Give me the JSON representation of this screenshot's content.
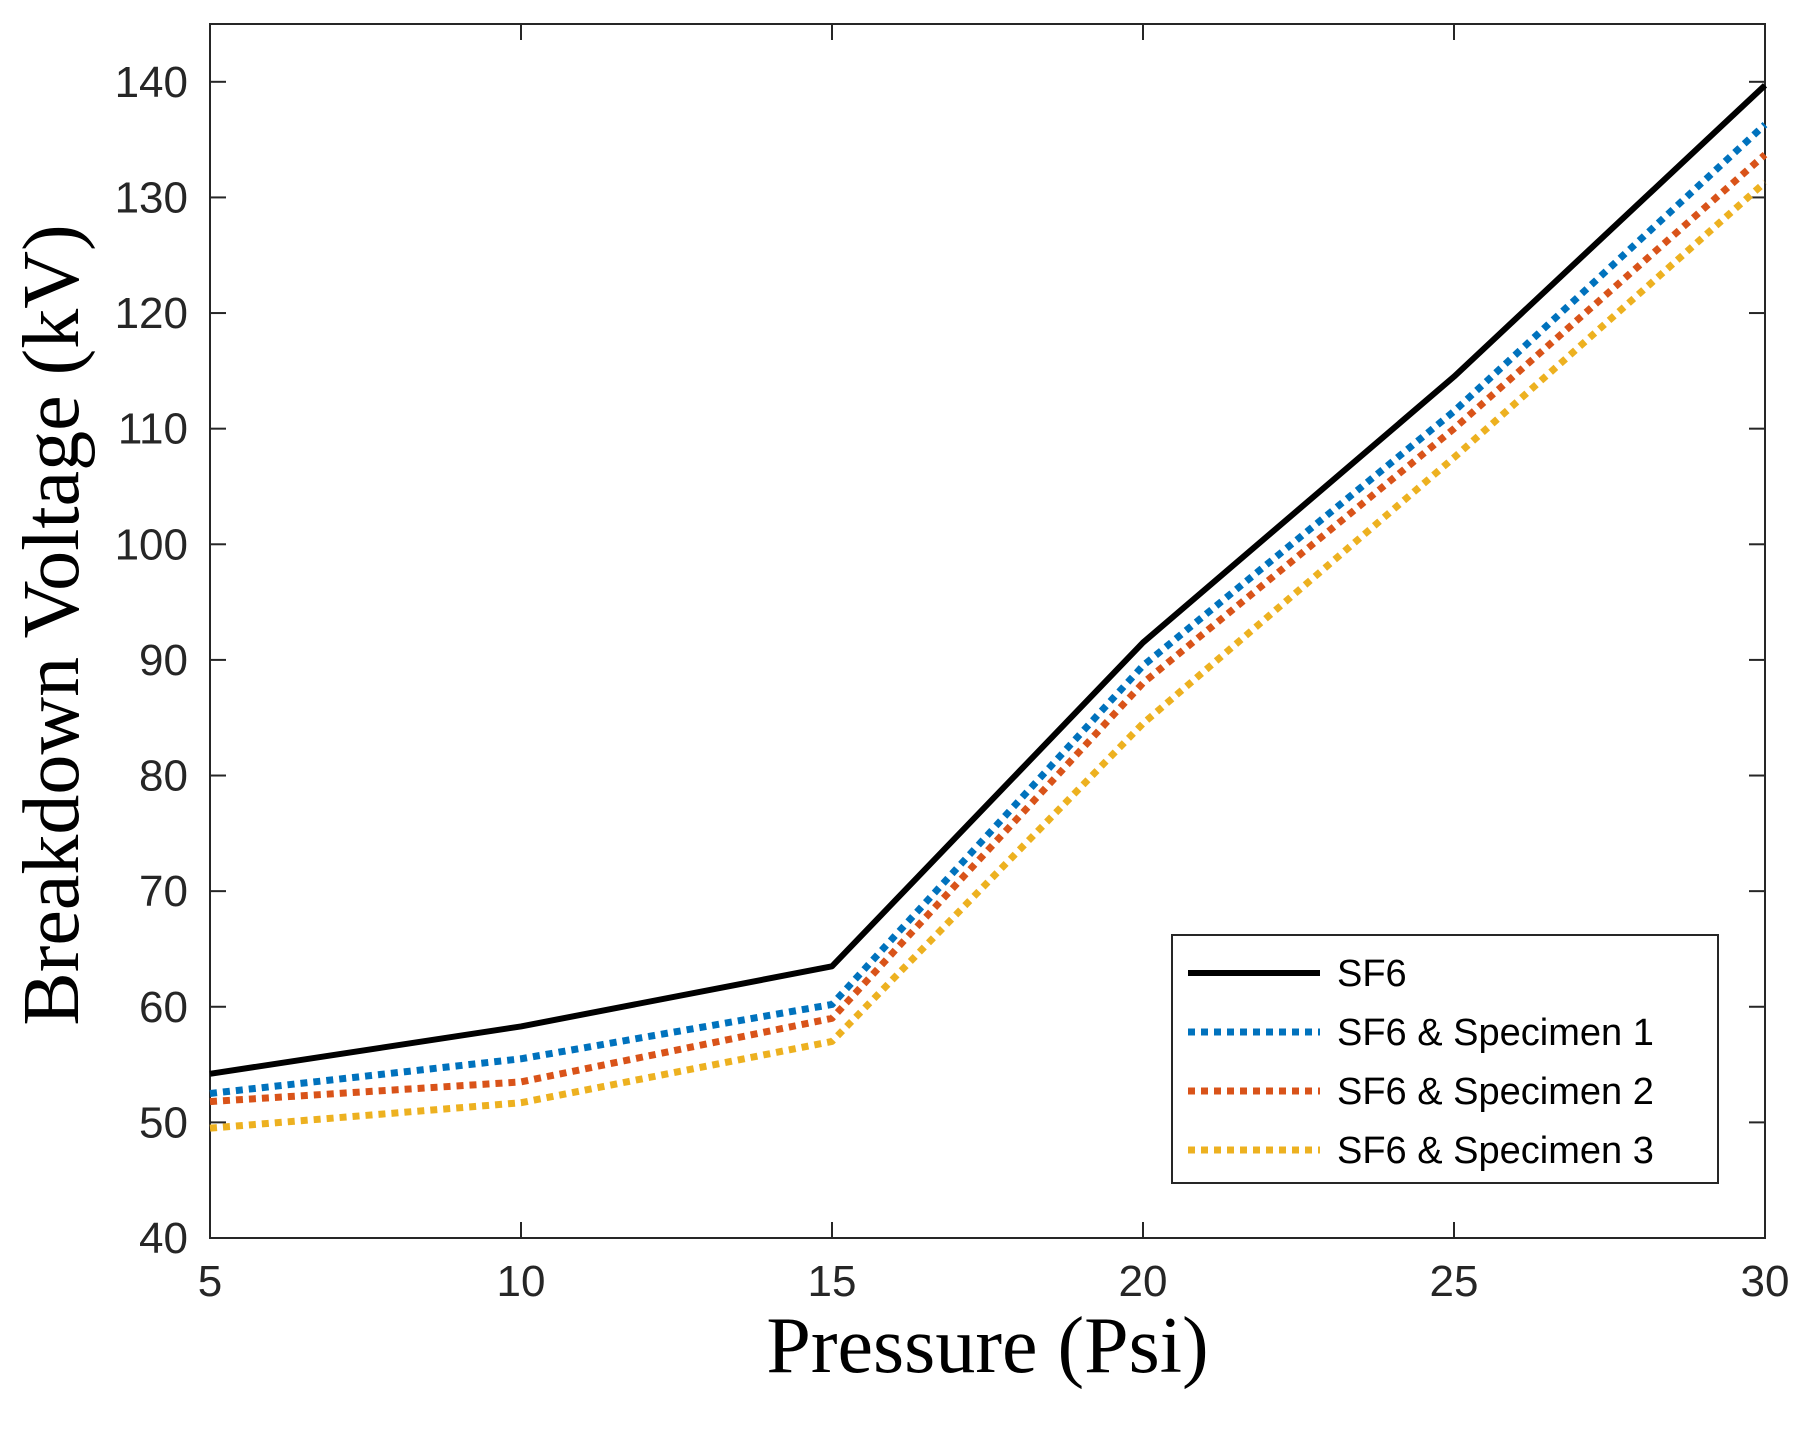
{
  "chart_data": {
    "type": "line",
    "title": "",
    "xlabel": "Pressure (Psi)",
    "ylabel": "Breakdown Voltage (kV)",
    "xlim": [
      5,
      30
    ],
    "ylim": [
      40,
      145
    ],
    "x": [
      5,
      10,
      15,
      20,
      25,
      30
    ],
    "xticks": [
      5,
      10,
      15,
      20,
      25,
      30
    ],
    "yticks": [
      40,
      50,
      60,
      70,
      80,
      90,
      100,
      110,
      120,
      130,
      140
    ],
    "grid": false,
    "legend_position": "bottom-right",
    "series": [
      {
        "name": "SF6",
        "values": [
          54.2,
          58.3,
          63.5,
          91.5,
          114.5,
          139.7
        ],
        "color": "#000000",
        "style": "solid"
      },
      {
        "name": "SF6 & Specimen 1",
        "values": [
          52.5,
          55.5,
          60.2,
          89.5,
          111.5,
          136.3
        ],
        "color": "#0072BD",
        "style": "dotted"
      },
      {
        "name": "SF6 & Specimen 2",
        "values": [
          51.8,
          53.5,
          59.0,
          88.0,
          110.0,
          133.7
        ],
        "color": "#D95319",
        "style": "dotted"
      },
      {
        "name": "SF6 & Specimen 3",
        "values": [
          49.5,
          51.7,
          57.0,
          84.5,
          107.5,
          131.3
        ],
        "color": "#EDB120",
        "style": "dotted"
      }
    ]
  }
}
